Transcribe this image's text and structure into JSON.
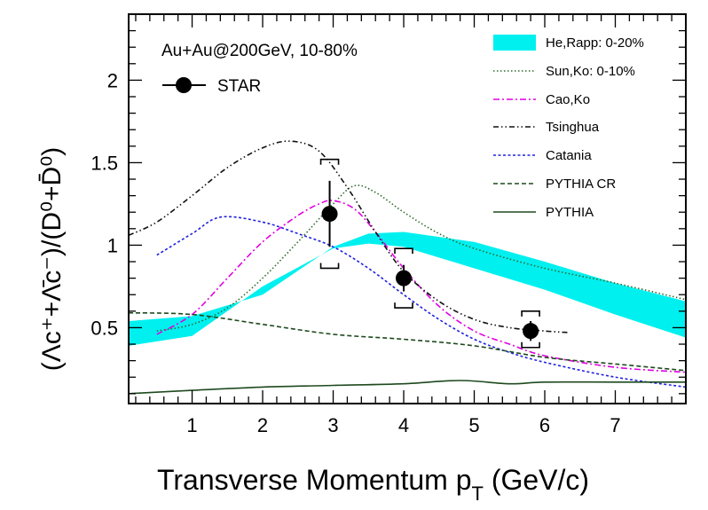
{
  "chart_data": {
    "type": "line",
    "annotation": "Au+Au@200GeV, 10-80%",
    "xlabel": "Transverse Momentum p",
    "xlabel_sub": "T",
    "xlabel_unit": " (GeV/c)",
    "ylabel": "(Λc⁺+Λ̄c⁻)/(D⁰+D̄⁰)",
    "xlim": [
      0.1,
      8.0
    ],
    "ylim": [
      0.04,
      2.4
    ],
    "x_ticks": [
      1,
      2,
      3,
      4,
      5,
      6,
      7
    ],
    "y_ticks": [
      0.5,
      1,
      1.5,
      2
    ],
    "x_tick_labels": [
      "1",
      "2",
      "3",
      "4",
      "5",
      "6",
      "7"
    ],
    "y_tick_labels": [
      "0.5",
      "1",
      "1.5",
      "2"
    ],
    "grid": false,
    "legend_left": {
      "label": "STAR",
      "placement": "top-left"
    },
    "legend_right_placement": "top-right",
    "data_points": {
      "name": "STAR",
      "color": "#000000",
      "points": [
        {
          "x": 2.95,
          "y": 1.19,
          "stat_lo": 0.99,
          "stat_hi": 1.39,
          "sys_lo": 0.86,
          "sys_hi": 1.52
        },
        {
          "x": 4.0,
          "y": 0.8,
          "stat_lo": 0.72,
          "stat_hi": 0.88,
          "sys_lo": 0.62,
          "sys_hi": 0.98
        },
        {
          "x": 5.8,
          "y": 0.48,
          "stat_lo": 0.42,
          "stat_hi": 0.54,
          "sys_lo": 0.38,
          "sys_hi": 0.6
        }
      ]
    },
    "band": {
      "name": "He,Rapp: 0-20%",
      "color": "#00f0f0",
      "x": [
        0.1,
        1.0,
        2.0,
        3.0,
        3.5,
        4.0,
        5.0,
        6.0,
        7.0,
        8.0
      ],
      "y_low": [
        0.39,
        0.45,
        0.75,
        0.98,
        1.01,
        0.99,
        0.86,
        0.73,
        0.58,
        0.44
      ],
      "y_high": [
        0.54,
        0.57,
        0.7,
        0.99,
        1.07,
        1.08,
        1.02,
        0.9,
        0.77,
        0.66
      ]
    },
    "series": [
      {
        "name": "Sun,Ko: 0-10%",
        "color": "#2e6b2e",
        "dash": "1.5,2.5",
        "x": [
          0.5,
          1.0,
          1.5,
          2.0,
          2.5,
          3.0,
          3.3,
          3.6,
          4.0,
          4.5,
          5.0,
          6.0,
          7.0,
          8.0
        ],
        "y": [
          0.48,
          0.52,
          0.62,
          0.8,
          1.02,
          1.25,
          1.36,
          1.32,
          1.2,
          1.07,
          0.98,
          0.86,
          0.77,
          0.67
        ]
      },
      {
        "name": "Cao,Ko",
        "color": "#e000e0",
        "dash": "7,3,2,3",
        "x": [
          0.5,
          1.0,
          1.5,
          2.0,
          2.5,
          2.8,
          3.0,
          3.3,
          3.6,
          4.0,
          4.5,
          5.0,
          5.5,
          6.0,
          7.0,
          8.0
        ],
        "y": [
          0.46,
          0.58,
          0.8,
          1.02,
          1.18,
          1.25,
          1.27,
          1.22,
          1.08,
          0.86,
          0.63,
          0.48,
          0.4,
          0.33,
          0.26,
          0.23
        ]
      },
      {
        "name": "Tsinghua",
        "color": "#111111",
        "dash": "6,3,1.5,3,1.5,3",
        "x": [
          0.1,
          0.5,
          1.0,
          1.5,
          2.0,
          2.4,
          2.8,
          3.2,
          3.6,
          4.0,
          4.5,
          5.0,
          5.5,
          6.0,
          6.35
        ],
        "y": [
          1.06,
          1.14,
          1.3,
          1.47,
          1.59,
          1.63,
          1.57,
          1.35,
          1.08,
          0.84,
          0.66,
          0.55,
          0.5,
          0.48,
          0.47
        ]
      },
      {
        "name": "Catania",
        "color": "#2020e0",
        "dash": "3,2.5",
        "x": [
          0.5,
          1.0,
          1.4,
          2.0,
          2.5,
          3.0,
          3.5,
          4.0,
          4.5,
          5.0,
          5.5,
          6.0,
          7.0,
          8.0
        ],
        "y": [
          0.94,
          1.07,
          1.17,
          1.14,
          1.07,
          0.99,
          0.86,
          0.7,
          0.55,
          0.43,
          0.35,
          0.29,
          0.2,
          0.14
        ]
      },
      {
        "name": "PYTHIA CR",
        "color": "#1e4a1e",
        "dash": "5,3",
        "x": [
          0.1,
          1.0,
          2.0,
          3.0,
          4.0,
          5.0,
          6.0,
          7.0,
          8.0
        ],
        "y": [
          0.59,
          0.58,
          0.52,
          0.46,
          0.43,
          0.39,
          0.32,
          0.28,
          0.24
        ]
      },
      {
        "name": "PYTHIA",
        "color": "#1e4a1e",
        "dash": "",
        "x": [
          0.1,
          1.0,
          2.0,
          3.0,
          4.0,
          4.8,
          5.5,
          6.0,
          7.0,
          8.0
        ],
        "y": [
          0.1,
          0.12,
          0.14,
          0.15,
          0.16,
          0.18,
          0.16,
          0.17,
          0.17,
          0.17
        ]
      }
    ]
  }
}
